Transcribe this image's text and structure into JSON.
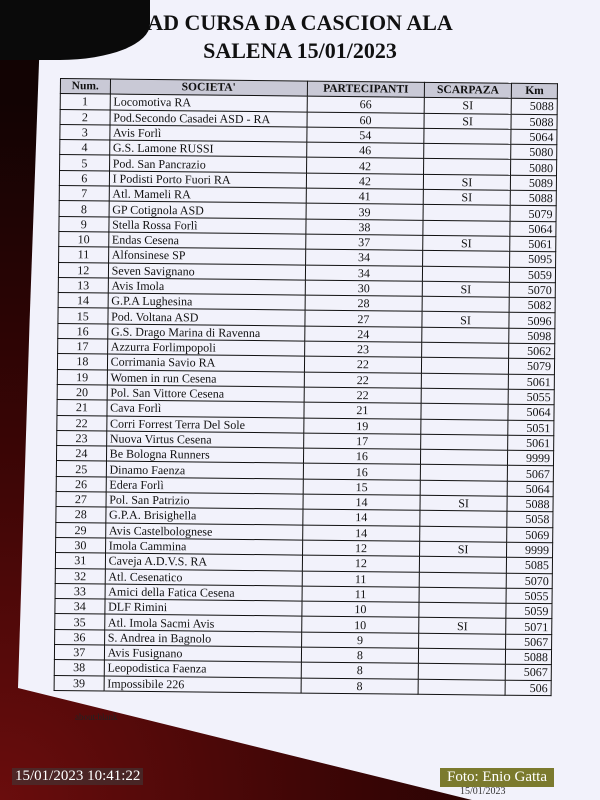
{
  "title_line1": "AD CURSA DA CASCION ALA",
  "title_line2": "SALENA 15/01/2023",
  "columns": [
    "Num.",
    "SOCIETA'",
    "PARTECIPANTI",
    "SCARPAZA",
    "Km"
  ],
  "rows": [
    [
      "1",
      "Locomotiva RA",
      "66",
      "SI",
      "5088"
    ],
    [
      "2",
      "Pod.Secondo Casadei ASD - RA",
      "60",
      "SI",
      "5088"
    ],
    [
      "3",
      "Avis Forlì",
      "54",
      "",
      "5064"
    ],
    [
      "4",
      "G.S. Lamone RUSSI",
      "46",
      "",
      "5080"
    ],
    [
      "5",
      "Pod. San Pancrazio",
      "42",
      "",
      "5080"
    ],
    [
      "6",
      "I Podisti Porto Fuori RA",
      "42",
      "SI",
      "5089"
    ],
    [
      "7",
      "Atl. Mameli RA",
      "41",
      "SI",
      "5088"
    ],
    [
      "8",
      "GP Cotignola ASD",
      "39",
      "",
      "5079"
    ],
    [
      "9",
      "Stella Rossa Forlì",
      "38",
      "",
      "5064"
    ],
    [
      "10",
      "Endas Cesena",
      "37",
      "SI",
      "5061"
    ],
    [
      "11",
      "Alfonsinese SP",
      "34",
      "",
      "5095"
    ],
    [
      "12",
      "Seven Savignano",
      "34",
      "",
      "5059"
    ],
    [
      "13",
      "Avis Imola",
      "30",
      "SI",
      "5070"
    ],
    [
      "14",
      "G.P.A Lughesina",
      "28",
      "",
      "5082"
    ],
    [
      "15",
      "Pod. Voltana ASD",
      "27",
      "SI",
      "5096"
    ],
    [
      "16",
      "G.S. Drago Marina di Ravenna",
      "24",
      "",
      "5098"
    ],
    [
      "17",
      "Azzurra Forlimpopoli",
      "23",
      "",
      "5062"
    ],
    [
      "18",
      "Corrimania Savio RA",
      "22",
      "",
      "5079"
    ],
    [
      "19",
      "Women in run Cesena",
      "22",
      "",
      "5061"
    ],
    [
      "20",
      "Pol. San Vittore Cesena",
      "22",
      "",
      "5055"
    ],
    [
      "21",
      "Cava Forlì",
      "21",
      "",
      "5064"
    ],
    [
      "22",
      "Corri Forrest Terra Del Sole",
      "19",
      "",
      "5051"
    ],
    [
      "23",
      "Nuova Virtus Cesena",
      "17",
      "",
      "5061"
    ],
    [
      "24",
      "Be Bologna Runners",
      "16",
      "",
      "9999"
    ],
    [
      "25",
      "Dinamo Faenza",
      "16",
      "",
      "5067"
    ],
    [
      "26",
      "Edera Forlì",
      "15",
      "",
      "5064"
    ],
    [
      "27",
      "Pol. San Patrizio",
      "14",
      "SI",
      "5088"
    ],
    [
      "28",
      "G.P.A. Brisighella",
      "14",
      "",
      "5058"
    ],
    [
      "29",
      "Avis Castelbolognese",
      "14",
      "",
      "5069"
    ],
    [
      "30",
      "Imola Cammina",
      "12",
      "SI",
      "9999"
    ],
    [
      "31",
      "Caveja A.D.V.S. RA",
      "12",
      "",
      "5085"
    ],
    [
      "32",
      "Atl. Cesenatico",
      "11",
      "",
      "5070"
    ],
    [
      "33",
      "Amici della Fatica Cesena",
      "11",
      "",
      "5055"
    ],
    [
      "34",
      "DLF Rimini",
      "10",
      "",
      "5059"
    ],
    [
      "35",
      "Atl. Imola Sacmi Avis",
      "10",
      "SI",
      "5071"
    ],
    [
      "36",
      "S. Andrea in Bagnolo",
      "9",
      "",
      "5067"
    ],
    [
      "37",
      "Avis Fusignano",
      "8",
      "",
      "5088"
    ],
    [
      "38",
      "Leopodistica Faenza",
      "8",
      "",
      "5067"
    ],
    [
      "39",
      "Impossibile 226",
      "8",
      "",
      "506"
    ]
  ],
  "footer_note": "about:blank",
  "photo_timestamp": "15/01/2023  10:41:22",
  "photo_credit": "Foto: Enio Gatta",
  "credit_color": "#7b7a2e",
  "paper_date": "15/01/2023"
}
